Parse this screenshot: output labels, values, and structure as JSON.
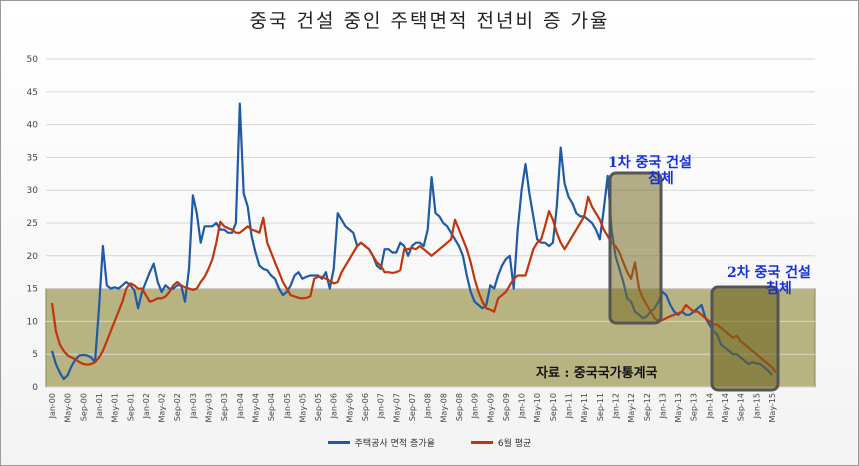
{
  "chart_data": {
    "type": "line",
    "title": "중국 건설 중인 주택면적  전년비 증 가율",
    "ylim": [
      0,
      50
    ],
    "yticks": [
      "0",
      "5",
      "10",
      "15",
      "20",
      "25",
      "30",
      "35",
      "40",
      "45",
      "50"
    ],
    "x_labels": [
      "Jan-00",
      "May-00",
      "Sep-00",
      "Jan-01",
      "May-01",
      "Sep-01",
      "Jan-02",
      "May-02",
      "Sep-02",
      "Jan-03",
      "May-03",
      "Sep-03",
      "Jan-04",
      "May-04",
      "Sep-04",
      "Jan-05",
      "May-05",
      "Sep-05",
      "Jan-06",
      "May-06",
      "Sep-06",
      "Jan-07",
      "May-07",
      "Sep-07",
      "Jan-08",
      "May-08",
      "Sep-08",
      "Jan-09",
      "May-09",
      "Sep-09",
      "Jan-10",
      "May-10",
      "Sep-10",
      "Jan-11",
      "May-11",
      "Sep-11",
      "Jan-12",
      "May-12",
      "Sep-12",
      "Jan-13",
      "May-13",
      "Sep-13",
      "Jan-14",
      "May-14",
      "Sep-14",
      "Jan-15",
      "May-15"
    ],
    "series": [
      {
        "name": "주택공사 면적 증가율",
        "color": "#1f5aa6",
        "values": [
          5.5,
          3.5,
          2.2,
          1.2,
          1.8,
          3.2,
          4.2,
          4.8,
          4.9,
          4.8,
          4.5,
          3.8,
          12,
          21.5,
          15.5,
          15,
          15.2,
          15,
          15.5,
          16,
          15.5,
          14.8,
          12,
          14.5,
          16,
          17.5,
          18.8,
          16,
          14.5,
          15.5,
          15,
          15,
          15.5,
          15.5,
          13,
          18,
          29.2,
          26.5,
          22,
          24.5,
          24.5,
          24.5,
          25,
          24,
          24,
          23.5,
          23.5,
          25,
          43.2,
          29.5,
          27.5,
          23,
          20.5,
          18.5,
          18,
          17.8,
          17,
          16.5,
          15,
          14,
          14.5,
          15.5,
          17,
          17.5,
          16.5,
          16.8,
          17,
          17,
          17,
          16.5,
          17.5,
          15,
          18,
          26.5,
          25.5,
          24.5,
          24,
          23.5,
          21.5,
          22,
          21.5,
          21,
          20,
          18.5,
          18,
          21,
          21,
          20.5,
          20.5,
          22,
          21.5,
          20,
          21.5,
          22,
          22,
          21.5,
          24,
          32,
          26.5,
          26,
          25,
          24.5,
          23.5,
          22.5,
          21.5,
          20,
          17,
          14.5,
          13,
          12.5,
          12,
          12.5,
          15.5,
          15,
          17,
          18.5,
          19.5,
          20,
          15,
          24,
          30,
          34,
          29.5,
          26,
          22.5,
          22,
          22,
          21.5,
          22,
          27.5,
          36.5,
          31,
          29,
          28,
          26.5,
          26,
          26,
          25.5,
          25,
          24,
          22.5,
          27,
          32.2,
          24,
          20,
          18,
          16,
          13.5,
          13,
          11.5,
          11,
          10.5,
          10.8,
          11.5,
          12,
          13,
          14.5,
          14,
          12.5,
          11.5,
          11,
          11.5,
          11,
          11,
          11.5,
          12,
          12.5,
          10.5,
          9.5,
          8.5,
          8,
          6.5,
          6,
          5.5,
          5,
          5,
          4.5,
          4,
          3.5,
          3.8,
          3.6,
          3.5,
          3,
          2.5,
          1.8
        ]
      },
      {
        "name": "6월 평균",
        "color": "#c0360c",
        "values": [
          12.8,
          8.5,
          6.5,
          5.5,
          4.8,
          4.5,
          4.2,
          3.8,
          3.5,
          3.4,
          3.5,
          3.8,
          4.5,
          5.5,
          7,
          8.5,
          10,
          11.5,
          13,
          15,
          15.8,
          15.5,
          15,
          15,
          14,
          13,
          13.2,
          13.5,
          13.5,
          13.8,
          14.5,
          15.5,
          16,
          15.5,
          15.2,
          15,
          14.8,
          15,
          16,
          16.8,
          18,
          19.5,
          22,
          25.2,
          24.5,
          24.2,
          24,
          23.5,
          23.5,
          24,
          24.5,
          24,
          23.8,
          23.5,
          25.8,
          22,
          20.5,
          19,
          17.5,
          16,
          15,
          14,
          13.8,
          13.6,
          13.5,
          13.6,
          13.8,
          16.5,
          16.8,
          16.8,
          16.5,
          16.2,
          15.8,
          16,
          17.5,
          18.5,
          19.5,
          20.5,
          21.5,
          22,
          21.5,
          21,
          20,
          19,
          18.5,
          17.5,
          17.5,
          17.4,
          17.5,
          17.8,
          21,
          21,
          21.2,
          21,
          21.5,
          21,
          20.5,
          20,
          20.5,
          21,
          21.5,
          22,
          22.5,
          25.5,
          24,
          22.5,
          21,
          19,
          16.5,
          14.5,
          13,
          12,
          11.8,
          11.5,
          13.5,
          14,
          14.5,
          15.5,
          16.5,
          17,
          17,
          17,
          19,
          21,
          22,
          22.5,
          24.5,
          26.8,
          25.5,
          23.5,
          22,
          21,
          22,
          23,
          24,
          25,
          26,
          29,
          27.5,
          26.5,
          25.5,
          24,
          23,
          22,
          21.5,
          20.5,
          19,
          17.5,
          16.5,
          19,
          15,
          13.5,
          12.5,
          11.5,
          10.5,
          10,
          10.2,
          10.5,
          10.8,
          11,
          11.2,
          11.5,
          12.5,
          12,
          11.5,
          11.5,
          11,
          10.5,
          10,
          9.5,
          9.5,
          9,
          8.5,
          8,
          7.5,
          7.8,
          7,
          6.5,
          6,
          5.5,
          5,
          4.5,
          4,
          3.5,
          3,
          2.2
        ]
      }
    ],
    "annotations": [
      {
        "text": "1차 중국 건설",
        "line2": "침체"
      },
      {
        "text": "2차 중국 건설",
        "line2": "침체"
      }
    ],
    "source_note": "자료 : 중국국가통계국",
    "legend_position": "bottom",
    "grid": true
  }
}
